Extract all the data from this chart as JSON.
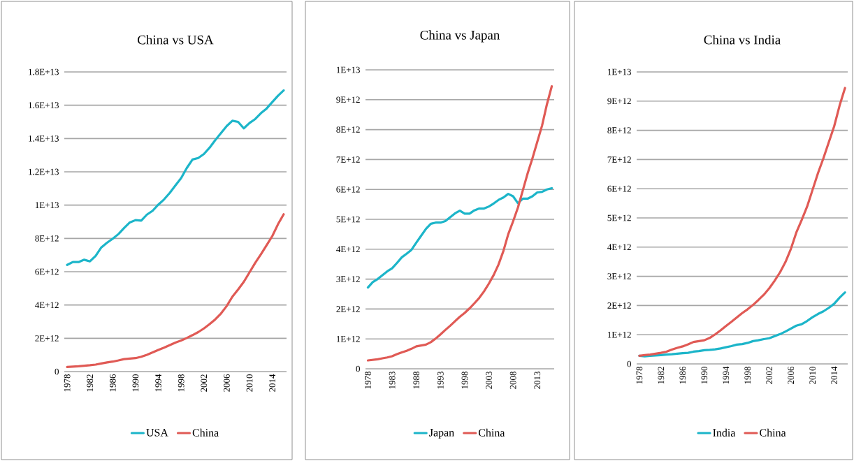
{
  "chart_data": [
    {
      "type": "line",
      "title": "China vs USA",
      "x": [
        1978,
        1979,
        1980,
        1981,
        1982,
        1983,
        1984,
        1985,
        1986,
        1987,
        1988,
        1989,
        1990,
        1991,
        1992,
        1993,
        1994,
        1995,
        1996,
        1997,
        1998,
        1999,
        2000,
        2001,
        2002,
        2003,
        2004,
        2005,
        2006,
        2007,
        2008,
        2009,
        2010,
        2011,
        2012,
        2013,
        2014,
        2015,
        2016
      ],
      "series": [
        {
          "name": "USA",
          "color": "#1cb5c9",
          "values": [
            6410000000000.0,
            6580000000000.0,
            6580000000000.0,
            6720000000000.0,
            6620000000000.0,
            6950000000000.0,
            7460000000000.0,
            7740000000000.0,
            7980000000000.0,
            8260000000000.0,
            8630000000000.0,
            8960000000000.0,
            9100000000000.0,
            9070000000000.0,
            9430000000000.0,
            9660000000000.0,
            10030000000000.0,
            10340000000000.0,
            10730000000000.0,
            11180000000000.0,
            11620000000000.0,
            12230000000000.0,
            12740000000000.0,
            12830000000000.0,
            13070000000000.0,
            13450000000000.0,
            13910000000000.0,
            14330000000000.0,
            14750000000000.0,
            15070000000000.0,
            15000000000000.0,
            14610000000000.0,
            14930000000000.0,
            15170000000000.0,
            15520000000000.0,
            15800000000000.0,
            16190000000000.0,
            16570000000000.0,
            16890000000000.0
          ]
        },
        {
          "name": "China",
          "color": "#e05a55",
          "values": [
            280000000000.0,
            300000000000.0,
            320000000000.0,
            350000000000.0,
            380000000000.0,
            420000000000.0,
            490000000000.0,
            550000000000.0,
            600000000000.0,
            670000000000.0,
            750000000000.0,
            780000000000.0,
            810000000000.0,
            890000000000.0,
            1010000000000.0,
            1150000000000.0,
            1300000000000.0,
            1440000000000.0,
            1590000000000.0,
            1740000000000.0,
            1870000000000.0,
            2020000000000.0,
            2190000000000.0,
            2370000000000.0,
            2590000000000.0,
            2850000000000.0,
            3140000000000.0,
            3490000000000.0,
            3940000000000.0,
            4500000000000.0,
            4930000000000.0,
            5390000000000.0,
            5960000000000.0,
            6530000000000.0,
            7040000000000.0,
            7590000000000.0,
            8140000000000.0,
            8850000000000.0,
            9450000000000.0
          ]
        }
      ],
      "xlim": [
        1977.5,
        2016.5
      ],
      "xticks": [
        1978,
        1982,
        1986,
        1990,
        1994,
        1998,
        2002,
        2006,
        2010,
        2014
      ],
      "ylim": [
        0,
        18000000000000.0
      ],
      "yticks": [
        0,
        {
          "value": 2000000000000.0,
          "label": "2E+12"
        },
        {
          "value": 4000000000000.0,
          "label": "4E+12"
        },
        {
          "value": 6000000000000.0,
          "label": "6E+12"
        },
        {
          "value": 8000000000000.0,
          "label": "8E+12"
        },
        {
          "value": 10000000000000.0,
          "label": "1E+13"
        },
        {
          "value": 12000000000000.0,
          "label": "1.2E+13"
        },
        {
          "value": 14000000000000.0,
          "label": "1.4E+13"
        },
        {
          "value": 16000000000000.0,
          "label": "1.6E+13"
        },
        {
          "value": 18000000000000.0,
          "label": "1.8E+13"
        }
      ],
      "grid": "y",
      "legend": "bottom"
    },
    {
      "type": "line",
      "title": "China vs Japan",
      "x": [
        1978,
        1979,
        1980,
        1981,
        1982,
        1983,
        1984,
        1985,
        1986,
        1987,
        1988,
        1989,
        1990,
        1991,
        1992,
        1993,
        1994,
        1995,
        1996,
        1997,
        1998,
        1999,
        2000,
        2001,
        2002,
        2003,
        2004,
        2005,
        2006,
        2007,
        2008,
        2009,
        2010,
        2011,
        2012,
        2013,
        2014,
        2015,
        2016
      ],
      "series": [
        {
          "name": "Japan",
          "color": "#1cb5c9",
          "values": [
            2720000000000.0,
            2900000000000.0,
            3000000000000.0,
            3130000000000.0,
            3260000000000.0,
            3360000000000.0,
            3540000000000.0,
            3730000000000.0,
            3850000000000.0,
            3980000000000.0,
            4220000000000.0,
            4450000000000.0,
            4680000000000.0,
            4850000000000.0,
            4890000000000.0,
            4890000000000.0,
            4940000000000.0,
            5070000000000.0,
            5200000000000.0,
            5290000000000.0,
            5190000000000.0,
            5190000000000.0,
            5300000000000.0,
            5360000000000.0,
            5360000000000.0,
            5430000000000.0,
            5530000000000.0,
            5650000000000.0,
            5730000000000.0,
            5850000000000.0,
            5770000000000.0,
            5540000000000.0,
            5690000000000.0,
            5690000000000.0,
            5770000000000.0,
            5900000000000.0,
            5920000000000.0,
            6000000000000.0,
            6040000000000.0
          ]
        },
        {
          "name": "China",
          "color": "#e05a55",
          "values": [
            280000000000.0,
            300000000000.0,
            320000000000.0,
            350000000000.0,
            380000000000.0,
            420000000000.0,
            490000000000.0,
            550000000000.0,
            600000000000.0,
            670000000000.0,
            750000000000.0,
            780000000000.0,
            810000000000.0,
            890000000000.0,
            1010000000000.0,
            1150000000000.0,
            1300000000000.0,
            1440000000000.0,
            1590000000000.0,
            1740000000000.0,
            1870000000000.0,
            2020000000000.0,
            2190000000000.0,
            2370000000000.0,
            2590000000000.0,
            2850000000000.0,
            3140000000000.0,
            3490000000000.0,
            3940000000000.0,
            4500000000000.0,
            4930000000000.0,
            5390000000000.0,
            5960000000000.0,
            6530000000000.0,
            7040000000000.0,
            7590000000000.0,
            8140000000000.0,
            8850000000000.0,
            9450000000000.0
          ]
        }
      ],
      "xlim": [
        1977.5,
        2016.5
      ],
      "xticks": [
        1978,
        1983,
        1988,
        1993,
        1998,
        2003,
        2008,
        2013
      ],
      "ylim": [
        0,
        10000000000000.0
      ],
      "yticks": [
        0,
        {
          "value": 1000000000000.0,
          "label": "1E+12"
        },
        {
          "value": 2000000000000.0,
          "label": "2E+12"
        },
        {
          "value": 3000000000000.0,
          "label": "3E+12"
        },
        {
          "value": 4000000000000.0,
          "label": "4E+12"
        },
        {
          "value": 5000000000000.0,
          "label": "5E+12"
        },
        {
          "value": 6000000000000.0,
          "label": "6E+12"
        },
        {
          "value": 7000000000000.0,
          "label": "7E+12"
        },
        {
          "value": 8000000000000.0,
          "label": "8E+12"
        },
        {
          "value": 9000000000000.0,
          "label": "9E+12"
        },
        {
          "value": 10000000000000.0,
          "label": "1E+13"
        }
      ],
      "grid": "y",
      "legend": "bottom"
    },
    {
      "type": "line",
      "title": "China vs India",
      "x": [
        1978,
        1979,
        1980,
        1981,
        1982,
        1983,
        1984,
        1985,
        1986,
        1987,
        1988,
        1989,
        1990,
        1991,
        1992,
        1993,
        1994,
        1995,
        1996,
        1997,
        1998,
        1999,
        2000,
        2001,
        2002,
        2003,
        2004,
        2005,
        2006,
        2007,
        2008,
        2009,
        2010,
        2011,
        2012,
        2013,
        2014,
        2015,
        2016
      ],
      "series": [
        {
          "name": "India",
          "color": "#1cb5c9",
          "values": [
            280000000000.0,
            260000000000.0,
            280000000000.0,
            290000000000.0,
            300000000000.0,
            320000000000.0,
            330000000000.0,
            350000000000.0,
            370000000000.0,
            380000000000.0,
            420000000000.0,
            440000000000.0,
            470000000000.0,
            480000000000.0,
            500000000000.0,
            530000000000.0,
            570000000000.0,
            610000000000.0,
            660000000000.0,
            680000000000.0,
            720000000000.0,
            780000000000.0,
            810000000000.0,
            850000000000.0,
            880000000000.0,
            950000000000.0,
            1020000000000.0,
            1110000000000.0,
            1210000000000.0,
            1310000000000.0,
            1360000000000.0,
            1470000000000.0,
            1600000000000.0,
            1710000000000.0,
            1800000000000.0,
            1920000000000.0,
            2060000000000.0,
            2270000000000.0,
            2450000000000.0
          ]
        },
        {
          "name": "China",
          "color": "#e05a55",
          "values": [
            280000000000.0,
            300000000000.0,
            320000000000.0,
            350000000000.0,
            380000000000.0,
            420000000000.0,
            490000000000.0,
            550000000000.0,
            600000000000.0,
            670000000000.0,
            750000000000.0,
            780000000000.0,
            810000000000.0,
            890000000000.0,
            1010000000000.0,
            1150000000000.0,
            1300000000000.0,
            1440000000000.0,
            1590000000000.0,
            1740000000000.0,
            1870000000000.0,
            2020000000000.0,
            2190000000000.0,
            2370000000000.0,
            2590000000000.0,
            2850000000000.0,
            3140000000000.0,
            3490000000000.0,
            3940000000000.0,
            4500000000000.0,
            4930000000000.0,
            5390000000000.0,
            5960000000000.0,
            6530000000000.0,
            7040000000000.0,
            7590000000000.0,
            8140000000000.0,
            8850000000000.0,
            9450000000000.0
          ]
        }
      ],
      "xlim": [
        1977.5,
        2016.5
      ],
      "xticks": [
        1978,
        1982,
        1986,
        1990,
        1994,
        1998,
        2002,
        2006,
        2010,
        2014
      ],
      "ylim": [
        0,
        10000000000000.0
      ],
      "yticks": [
        0,
        {
          "value": 1000000000000.0,
          "label": "1E+12"
        },
        {
          "value": 2000000000000.0,
          "label": "2E+12"
        },
        {
          "value": 3000000000000.0,
          "label": "3E+12"
        },
        {
          "value": 4000000000000.0,
          "label": "4E+12"
        },
        {
          "value": 5000000000000.0,
          "label": "5E+12"
        },
        {
          "value": 6000000000000.0,
          "label": "6E+12"
        },
        {
          "value": 7000000000000.0,
          "label": "7E+12"
        },
        {
          "value": 8000000000000.0,
          "label": "8E+12"
        },
        {
          "value": 9000000000000.0,
          "label": "9E+12"
        },
        {
          "value": 10000000000000.0,
          "label": "1E+13"
        }
      ],
      "grid": "y",
      "legend": "bottom"
    }
  ]
}
